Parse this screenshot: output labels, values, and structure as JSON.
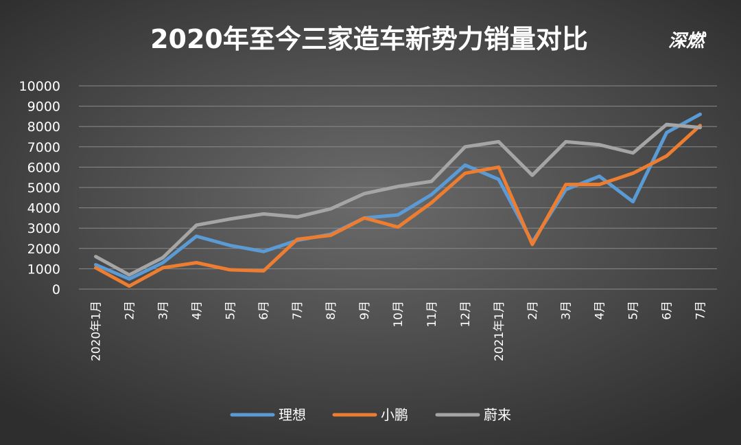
{
  "logo": {
    "text": "深燃"
  },
  "colors": {
    "grid": "#8a8a8a"
  },
  "chart_data": {
    "type": "line",
    "title": "2020年至今三家造车新势力销量对比",
    "xlabel": "",
    "ylabel": "",
    "ylim": [
      0,
      10000
    ],
    "yticks": [
      0,
      1000,
      2000,
      3000,
      4000,
      5000,
      6000,
      7000,
      8000,
      9000,
      10000
    ],
    "grid": true,
    "legend": "bottom",
    "categories": [
      "2020年1月",
      "2月",
      "3月",
      "4月",
      "5月",
      "6月",
      "7月",
      "8月",
      "9月",
      "10月",
      "11月",
      "12月",
      "2021年1月",
      "2月",
      "3月",
      "4月",
      "5月",
      "6月",
      "7月"
    ],
    "series": [
      {
        "name": "理想",
        "color": "#5b9bd5",
        "values": [
          1200,
          500,
          1300,
          2600,
          2150,
          1850,
          2400,
          2700,
          3500,
          3650,
          4650,
          6100,
          5400,
          2300,
          4900,
          5550,
          4300,
          7700,
          8600
        ]
      },
      {
        "name": "小鹏",
        "color": "#ed7d31",
        "values": [
          1050,
          150,
          1050,
          1300,
          950,
          900,
          2450,
          2650,
          3500,
          3050,
          4250,
          5700,
          6000,
          2200,
          5150,
          5150,
          5700,
          6550,
          8050
        ]
      },
      {
        "name": "蔚来",
        "color": "#a5a5a5",
        "values": [
          1600,
          700,
          1550,
          3150,
          3450,
          3700,
          3550,
          3950,
          4700,
          5050,
          5300,
          7000,
          7250,
          5600,
          7250,
          7100,
          6700,
          8100,
          7950
        ]
      }
    ]
  }
}
